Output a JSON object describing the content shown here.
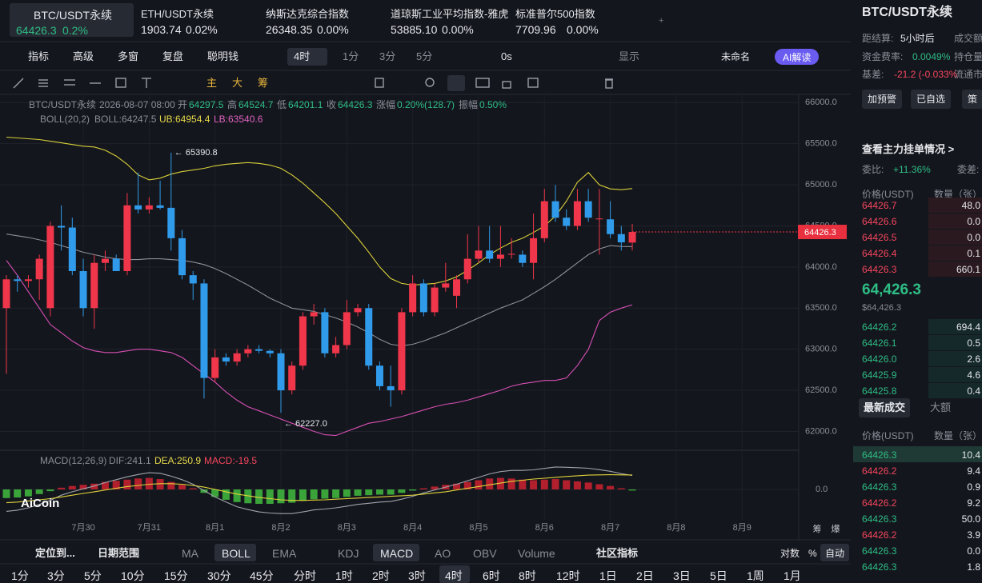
{
  "tabs": [
    {
      "name": "BTC/USDT永续",
      "price": "64426.3",
      "change": "0.2%"
    },
    {
      "name": "ETH/USDT永续",
      "price": "1903.74",
      "change": "0.02%"
    },
    {
      "name": "纳斯达克综合指数",
      "price": "26348.35",
      "change": "0.00%"
    },
    {
      "name": "道琼斯工业平均指数-雅虎",
      "price": "53885.10",
      "change": "0.00%"
    },
    {
      "name": "标准普尔500指数",
      "price": "7709.96",
      "change": "0.00%"
    }
  ],
  "toolbar": {
    "menu": [
      "指标",
      "高级",
      "多窗",
      "复盘",
      "聪明钱"
    ],
    "interval": "4时",
    "intervals": [
      "1分",
      "3分",
      "5分"
    ],
    "timer": "0s",
    "display": "显示",
    "layout": "未命名",
    "ai": "AI解读"
  },
  "drawing_tools": [
    "主",
    "大",
    "筹"
  ],
  "legend": {
    "symbol": "BTC/USDT永续",
    "time": "2026-08-07 08:00",
    "fields": [
      {
        "label": "开",
        "value": "64297.5"
      },
      {
        "label": "高",
        "value": "64524.7"
      },
      {
        "label": "低",
        "value": "64201.1"
      },
      {
        "label": "收",
        "value": "64426.3"
      },
      {
        "label": "涨幅",
        "value": "0.20%(128.7)"
      },
      {
        "label": "振幅",
        "value": "0.50%"
      }
    ],
    "boll": "BOLL(20,2)",
    "boll_mid": "BOLL:64247.5",
    "boll_upper": "UB:64954.4",
    "boll_lower": "LB:63540.6"
  },
  "kline": {
    "type": "candlestick",
    "categories": [
      null,
      null,
      null,
      null,
      null,
      null,
      null,
      "7月30",
      null,
      null,
      null,
      null,
      null,
      "7月31",
      null,
      null,
      null,
      null,
      null,
      "8月1",
      null,
      null,
      null,
      null,
      null,
      "8月2",
      null,
      null,
      null,
      null,
      null,
      "8月3",
      null,
      null,
      null,
      null,
      null,
      "8月4",
      null,
      null,
      null,
      null,
      null,
      "8月5",
      null,
      null,
      null,
      null,
      null,
      "8月6",
      null,
      null,
      null,
      null,
      null,
      "8月7",
      null,
      null,
      null,
      null,
      null,
      "8月8",
      null,
      null,
      null,
      null,
      null,
      "8月9"
    ],
    "open": [
      63500,
      63850,
      63830,
      63850,
      63500,
      64500,
      64480,
      63950,
      63500,
      64050,
      64100,
      63950,
      64750,
      64700,
      64750,
      64720,
      64350,
      63900,
      63800,
      62650,
      62900,
      62850,
      62950,
      63000,
      62980,
      62950,
      62500,
      62800,
      63400,
      63450,
      62950,
      63050,
      63450,
      63500,
      62800,
      62550,
      62500,
      63450,
      63800,
      63450,
      63750,
      63650,
      63850,
      64100,
      64200,
      64100,
      64150,
      64150,
      64050,
      64350,
      64800,
      64600,
      64500,
      64800,
      64580,
      64580,
      64400,
      64297.5,
      null,
      null,
      null,
      null,
      null,
      null,
      null,
      null,
      null,
      null
    ],
    "high": [
      63900,
      63900,
      63900,
      64150,
      64550,
      64750,
      64600,
      64100,
      64150,
      64200,
      64150,
      64900,
      65150,
      64850,
      65050,
      65390.8,
      64450,
      63950,
      63850,
      63000,
      62950,
      63000,
      63050,
      63050,
      63000,
      63000,
      62850,
      63450,
      63550,
      63500,
      63150,
      63600,
      63550,
      63550,
      62850,
      62800,
      63500,
      63900,
      63850,
      63800,
      64050,
      63900,
      64400,
      64500,
      64500,
      64500,
      64350,
      64200,
      64650,
      64950,
      65000,
      64700,
      64950,
      64950,
      64950,
      64800,
      64500,
      64524.7,
      null,
      null,
      null,
      null,
      null,
      null,
      null,
      null,
      null,
      null
    ],
    "low": [
      62700,
      63700,
      63750,
      63600,
      63400,
      64200,
      63900,
      63400,
      63250,
      63950,
      63950,
      63900,
      64650,
      64650,
      64700,
      64200,
      63850,
      63600,
      62400,
      62600,
      62800,
      62800,
      62900,
      62950,
      62900,
      62227.0,
      62450,
      62750,
      63300,
      62900,
      62900,
      63000,
      63400,
      62750,
      62500,
      62300,
      62450,
      63400,
      63400,
      63400,
      63700,
      63500,
      63800,
      64050,
      64050,
      64000,
      64100,
      64000,
      63850,
      64300,
      64550,
      64450,
      64450,
      64550,
      64150,
      64350,
      64200,
      64201.1,
      null,
      null,
      null,
      null,
      null,
      null,
      null,
      null,
      null,
      null
    ],
    "close": [
      63850,
      63830,
      63850,
      64100,
      64500,
      64480,
      63950,
      63500,
      64050,
      64100,
      63950,
      64750,
      64700,
      64750,
      64720,
      64350,
      63900,
      63800,
      62650,
      62900,
      62850,
      62950,
      63000,
      62980,
      62950,
      62500,
      62800,
      63400,
      63450,
      62950,
      63050,
      63450,
      63500,
      62800,
      62550,
      62500,
      63450,
      63800,
      63450,
      63750,
      63800,
      63850,
      64100,
      64200,
      64100,
      64150,
      64160,
      64050,
      64350,
      64800,
      64600,
      64500,
      64800,
      64600,
      64590,
      64400,
      64300,
      64426.3,
      null,
      null,
      null,
      null,
      null,
      null,
      null,
      null,
      null,
      null
    ],
    "boll_upper": [
      65580,
      65570,
      65560,
      65550,
      65530,
      65510,
      65490,
      65470,
      65460,
      65420,
      65350,
      65250,
      65120,
      65060,
      65080,
      65130,
      65160,
      65180,
      65200,
      65230,
      65250,
      65260,
      65270,
      65260,
      65240,
      65200,
      65120,
      65020,
      64900,
      64780,
      64650,
      64500,
      64350,
      64180,
      64000,
      63860,
      63800,
      63780,
      63790,
      63800,
      63830,
      63880,
      63960,
      64050,
      64150,
      64230,
      64300,
      64350,
      64420,
      64500,
      64620,
      64800,
      65030,
      65150,
      65000,
      64950,
      64940,
      64954.4,
      null,
      null,
      null,
      null,
      null,
      null,
      null,
      null,
      null,
      null
    ],
    "boll_mid": [
      64400,
      64380,
      64360,
      64330,
      64300,
      64260,
      64220,
      64180,
      64150,
      64120,
      64100,
      64090,
      64090,
      64100,
      64100,
      64090,
      64080,
      64060,
      64030,
      63980,
      63920,
      63850,
      63780,
      63700,
      63620,
      63560,
      63500,
      63480,
      63460,
      63420,
      63380,
      63330,
      63270,
      63200,
      63120,
      63060,
      63040,
      63060,
      63100,
      63150,
      63200,
      63260,
      63320,
      63380,
      63440,
      63500,
      63550,
      63600,
      63680,
      63760,
      63850,
      63950,
      64050,
      64150,
      64220,
      64260,
      64250,
      64247.5,
      null,
      null,
      null,
      null,
      null,
      null,
      null,
      null,
      null,
      null
    ],
    "boll_lower": [
      64080,
      63900,
      63700,
      63500,
      63300,
      63200,
      63100,
      63020,
      62980,
      62960,
      62960,
      62980,
      63000,
      63000,
      62980,
      62960,
      62900,
      62800,
      62700,
      62600,
      62480,
      62380,
      62300,
      62250,
      62200,
      62150,
      62100,
      62050,
      62000,
      61960,
      61950,
      62000,
      62050,
      62100,
      62120,
      62150,
      62180,
      62220,
      62260,
      62300,
      62330,
      62350,
      62380,
      62420,
      62460,
      62500,
      62550,
      62580,
      62600,
      62620,
      62620,
      62650,
      62800,
      63000,
      63350,
      63450,
      63500,
      63540.6,
      null,
      null,
      null,
      null,
      null,
      null,
      null,
      null,
      null,
      null
    ],
    "colors": {
      "up": "#f0364a",
      "down": "#2f9bea",
      "boll_upper": "#d8cf3a",
      "boll_mid": "#8c8f99",
      "boll_lower": "#d64fb4"
    },
    "annotations": [
      "← 65390.8",
      "← 62227.0"
    ],
    "ylim": [
      61800,
      66100
    ],
    "yticks": [
      {
        "value": 62000,
        "label": "62000.0"
      },
      {
        "value": 62500,
        "label": "62500.0"
      },
      {
        "value": 63000,
        "label": "63000.0"
      },
      {
        "value": 63500,
        "label": "63500.0"
      },
      {
        "value": 64000,
        "label": "64000.0"
      },
      {
        "value": 64500,
        "label": "64500.0"
      },
      {
        "value": 65000,
        "label": "65000.0"
      },
      {
        "value": 65500,
        "label": "65500.0"
      },
      {
        "value": 66000,
        "label": "66000.0"
      }
    ],
    "grid": true,
    "axis_tools": [
      "筹",
      "爆"
    ]
  },
  "macd": {
    "title": "MACD(12,26,9)",
    "dif_label": "DIF:241.1",
    "dea_label": "DEA:250.9",
    "macd_label": "MACD:-19.5",
    "hist": [
      -150,
      -140,
      -120,
      -80,
      -30,
      30,
      60,
      80,
      100,
      130,
      150,
      170,
      190,
      200,
      180,
      130,
      80,
      20,
      -60,
      -130,
      -180,
      -220,
      -240,
      -250,
      -250,
      -240,
      -230,
      -200,
      -170,
      -160,
      -150,
      -130,
      -110,
      -100,
      -90,
      -90,
      -60,
      -20,
      20,
      50,
      80,
      100,
      130,
      160,
      190,
      200,
      190,
      170,
      160,
      170,
      180,
      160,
      140,
      120,
      90,
      60,
      20,
      -19.5,
      null,
      null,
      null,
      null,
      null,
      null,
      null,
      null,
      null,
      null
    ],
    "dif": [
      -380,
      -360,
      -320,
      -260,
      -190,
      -100,
      -40,
      10,
      60,
      120,
      170,
      220,
      260,
      290,
      280,
      230,
      170,
      90,
      -20,
      -130,
      -220,
      -300,
      -350,
      -390,
      -410,
      -420,
      -420,
      -390,
      -355,
      -340,
      -320,
      -290,
      -260,
      -240,
      -220,
      -210,
      -170,
      -120,
      -60,
      -10,
      40,
      90,
      150,
      210,
      270,
      310,
      330,
      330,
      340,
      365,
      390,
      385,
      378,
      368,
      343,
      315,
      273,
      241.1,
      null,
      null,
      null,
      null,
      null,
      null,
      null,
      null,
      null,
      null
    ],
    "dea": [
      -230,
      -220,
      -200,
      -180,
      -160,
      -130,
      -100,
      -70,
      -40,
      -10,
      20,
      50,
      70,
      90,
      100,
      100,
      90,
      70,
      40,
      0,
      -40,
      -80,
      -110,
      -140,
      -160,
      -180,
      -190,
      -190,
      -185,
      -180,
      -170,
      -160,
      -150,
      -140,
      -130,
      -120,
      -110,
      -100,
      -80,
      -60,
      -40,
      -10,
      20,
      50,
      80,
      110,
      140,
      160,
      180,
      195,
      210,
      225,
      238,
      248,
      253,
      255,
      253,
      250.9,
      null,
      null,
      null,
      null,
      null,
      null,
      null,
      null,
      null,
      null
    ],
    "colors": {
      "up": "#b3202d",
      "down": "#3aa33a",
      "dif": "#a0a3aa",
      "dea": "#e0d33a"
    },
    "ylim": [
      -500,
      500
    ],
    "yticks": [
      {
        "value": 0,
        "label": "0.0"
      }
    ]
  },
  "logo": "AiCoin",
  "bottom": {
    "locate": "定位到...",
    "range": "日期范围",
    "indicators": [
      "MA",
      "BOLL",
      "EMA",
      "KDJ",
      "MACD",
      "AO",
      "OBV",
      "Volume"
    ],
    "community": "社区指标",
    "scale": [
      "对数",
      "%",
      "自动"
    ],
    "timeframes": [
      "1分",
      "3分",
      "5分",
      "10分",
      "15分",
      "30分",
      "45分",
      "分时",
      "1时",
      "2时",
      "3时",
      "4时",
      "6时",
      "8时",
      "12时",
      "1日",
      "2日",
      "3日",
      "5日",
      "1周",
      "1月"
    ]
  },
  "right": {
    "symbol": "BTC/USDT永续",
    "settle_label": "距结算:",
    "settle_value": "5小时后",
    "turnover_label": "成交额",
    "funding_label": "资金费率:",
    "funding_value": "0.0049%",
    "oi_label": "持仓量",
    "basis_label": "基差:",
    "basis_value": "-21.2 (-0.033%",
    "cap_label": "流通市",
    "buttons": [
      "加预警",
      "已自选",
      "策"
    ],
    "orders_link": "查看主力挂单情况 >",
    "ratio_label": "委比:",
    "ratio_value": "+11.36%",
    "diff_label": "委差:",
    "book_header": [
      "价格(USDT)",
      "数量（张）"
    ],
    "asks": [
      [
        "64426.7",
        "48.0"
      ],
      [
        "64426.6",
        "0.0"
      ],
      [
        "64426.5",
        "0.0"
      ],
      [
        "64426.4",
        "0.1"
      ],
      [
        "64426.3",
        "660.1"
      ]
    ],
    "mid_price": "64,426.3",
    "mid_usd": "$64,426.3",
    "bids": [
      [
        "64426.2",
        "694.4"
      ],
      [
        "64426.1",
        "0.5"
      ],
      [
        "64426.0",
        "2.6"
      ],
      [
        "64425.9",
        "4.6"
      ],
      [
        "64425.8",
        "0.4"
      ]
    ],
    "trade_tabs": [
      "最新成交",
      "大额"
    ],
    "trade_header": [
      "价格(USDT)",
      "数量（张）"
    ],
    "trades": [
      {
        "price": "64426.3",
        "qty": "10.4",
        "color": "#2ebd85"
      },
      {
        "price": "64426.2",
        "qty": "9.4",
        "color": "#f6465d"
      },
      {
        "price": "64426.3",
        "qty": "0.9",
        "color": "#2ebd85"
      },
      {
        "price": "64426.2",
        "qty": "9.2",
        "color": "#f6465d"
      },
      {
        "price": "64426.3",
        "qty": "50.0",
        "color": "#2ebd85"
      },
      {
        "price": "64426.2",
        "qty": "3.9",
        "color": "#f6465d"
      },
      {
        "price": "64426.3",
        "qty": "0.0",
        "color": "#2ebd85"
      },
      {
        "price": "64426.3",
        "qty": "1.8",
        "color": "#2ebd85"
      }
    ]
  }
}
